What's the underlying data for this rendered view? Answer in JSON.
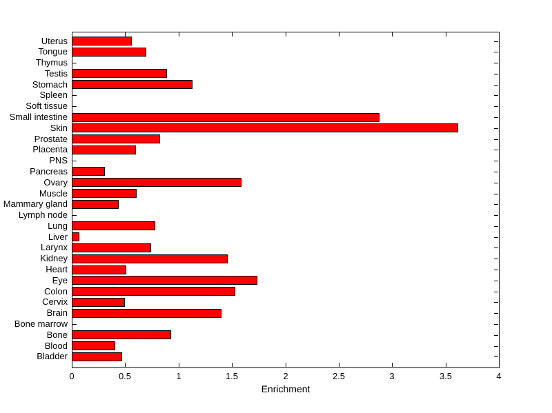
{
  "chart_data": {
    "type": "bar",
    "orientation": "horizontal",
    "title": "",
    "xlabel": "Enrichment",
    "ylabel": "",
    "xlim": [
      0,
      4
    ],
    "xticks": [
      0,
      0.5,
      1,
      1.5,
      2,
      2.5,
      3,
      3.5,
      4
    ],
    "xtick_labels": [
      "0",
      "0.5",
      "1",
      "1.5",
      "2",
      "2.5",
      "3",
      "3.5",
      "4"
    ],
    "grid": false,
    "legend": "none",
    "bar_color": "#FF0000",
    "bar_edge_color": "#000000",
    "background_color": "#FFFFFF",
    "categories": [
      "Uterus",
      "Tongue",
      "Thymus",
      "Testis",
      "Stomach",
      "Spleen",
      "Soft tissue",
      "Small intestine",
      "Skin",
      "Prostate",
      "Placenta",
      "PNS",
      "Pancreas",
      "Ovary",
      "Muscle",
      "Mammary gland",
      "Lymph node",
      "Lung",
      "Liver",
      "Larynx",
      "Kidney",
      "Heart",
      "Eye",
      "Colon",
      "Cervix",
      "Brain",
      "Bone marrow",
      "Bone",
      "Blood",
      "Bladder"
    ],
    "values": [
      0.56,
      0.7,
      0,
      0.89,
      1.13,
      0,
      0,
      2.88,
      3.62,
      0.83,
      0.6,
      0,
      0.31,
      1.59,
      0.61,
      0.44,
      0,
      0.78,
      0.07,
      0.74,
      1.46,
      0.51,
      1.74,
      1.53,
      0.5,
      1.4,
      0,
      0.93,
      0.41,
      0.47
    ]
  }
}
